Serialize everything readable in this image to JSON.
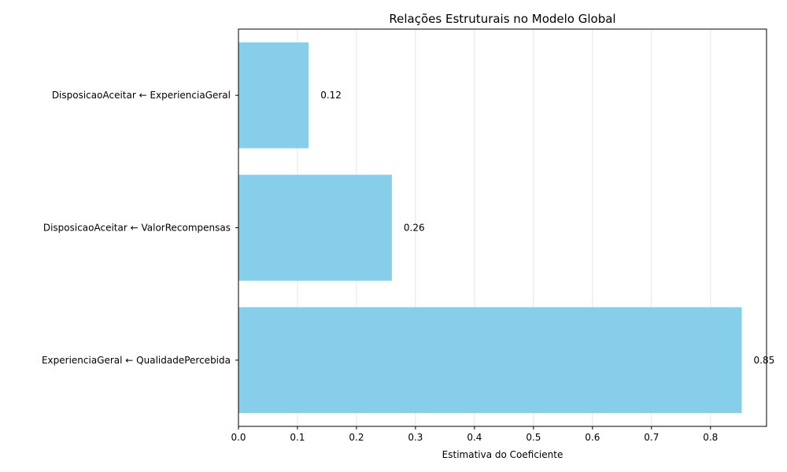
{
  "chart_data": {
    "type": "bar",
    "orientation": "horizontal",
    "title": "Relações Estruturais no Modelo Global",
    "xlabel": "Estimativa do Coeficiente",
    "ylabel": "",
    "categories": [
      "ExperienciaGeral ← QualidadePercebida",
      "DisposicaoAceitar ← ValorRecompensas",
      "DisposicaoAceitar ← ExperienciaGeral"
    ],
    "values": [
      0.853,
      0.26,
      0.119
    ],
    "value_labels": [
      "0.85",
      "0.26",
      "0.12"
    ],
    "xlim": [
      0,
      0.895
    ],
    "xticks": [
      0.0,
      0.1,
      0.2,
      0.3,
      0.4,
      0.5,
      0.6,
      0.7,
      0.8
    ],
    "xtick_labels": [
      "0.0",
      "0.1",
      "0.2",
      "0.3",
      "0.4",
      "0.5",
      "0.6",
      "0.7",
      "0.8"
    ],
    "grid": "x",
    "bar_color": "#87ceeb",
    "grid_color": "#e6e6e6"
  }
}
